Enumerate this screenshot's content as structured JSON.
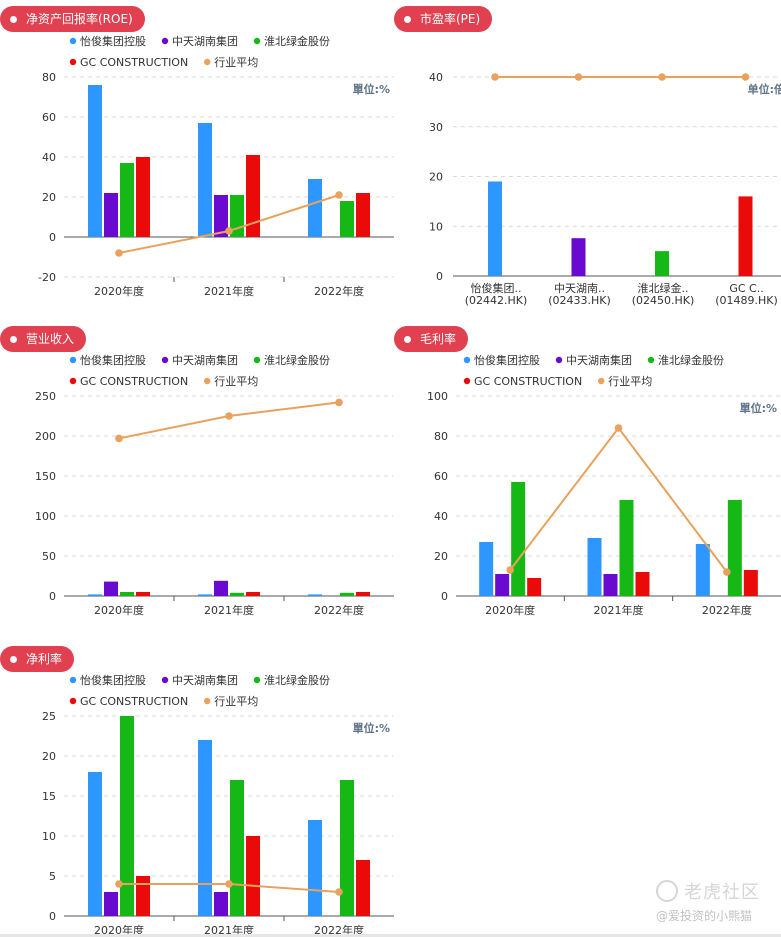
{
  "colors": {
    "series": [
      "#2e96ff",
      "#6a0ad1",
      "#16b815",
      "#ea0a0a"
    ],
    "avg": "#e8a25d",
    "pill": "#e0404f"
  },
  "watermark": {
    "brand": "老虎社区",
    "user": "@爱投资的小熊猫"
  },
  "chart_data": [
    {
      "id": "roe",
      "title": "净资产回报率(ROE)",
      "type": "bar",
      "unit": "單位:%",
      "legend": [
        "怡俊集团控股",
        "中天湖南集团",
        "淮北绿金股份",
        "GC CONSTRUCTION",
        "行业平均"
      ],
      "categories": [
        "2020年度",
        "2021年度",
        "2022年度"
      ],
      "ylim": [
        -20,
        80
      ],
      "yticks": [
        -20,
        0,
        20,
        40,
        60,
        80
      ],
      "series": [
        {
          "name": "怡俊集团控股",
          "values": [
            76,
            57,
            29
          ]
        },
        {
          "name": "中天湖南集团",
          "values": [
            22,
            21,
            null
          ]
        },
        {
          "name": "淮北绿金股份",
          "values": [
            37,
            21,
            18
          ]
        },
        {
          "name": "GC CONSTRUCTION",
          "values": [
            40,
            41,
            22
          ]
        }
      ],
      "line": {
        "name": "行业平均",
        "values": [
          -8,
          3,
          21
        ]
      }
    },
    {
      "id": "pe",
      "title": "市盈率(PE)",
      "type": "bar",
      "unit": "单位:倍",
      "categories": [
        "怡俊集团..(02442.HK)",
        "中天湖南..(02433.HK)",
        "淮北绿金..(02450.HK)",
        "GC C..(01489.HK)"
      ],
      "category_lines": [
        [
          "怡俊集团..",
          "(02442.HK)"
        ],
        [
          "中天湖南..",
          "(02433.HK)"
        ],
        [
          "淮北绿金..",
          "(02450.HK)"
        ],
        [
          "GC C..",
          "(01489.HK)"
        ]
      ],
      "ylim": [
        0,
        40
      ],
      "yticks": [
        0,
        10,
        20,
        30,
        40
      ],
      "values": [
        19,
        7.6,
        5,
        16
      ],
      "line": {
        "values": [
          40,
          40,
          40,
          40
        ]
      }
    },
    {
      "id": "revenue",
      "title": "营业收入",
      "type": "bar",
      "unit": "",
      "legend": [
        "怡俊集团控股",
        "中天湖南集团",
        "淮北绿金股份",
        "GC CONSTRUCTION",
        "行业平均"
      ],
      "categories": [
        "2020年度",
        "2021年度",
        "2022年度"
      ],
      "ylim": [
        0,
        250
      ],
      "yticks": [
        0,
        50,
        100,
        150,
        200,
        250
      ],
      "series": [
        {
          "name": "怡俊集团控股",
          "values": [
            2,
            2,
            2
          ]
        },
        {
          "name": "中天湖南集团",
          "values": [
            18,
            19,
            null
          ]
        },
        {
          "name": "淮北绿金股份",
          "values": [
            5,
            4,
            4
          ]
        },
        {
          "name": "GC CONSTRUCTION",
          "values": [
            5,
            5,
            5
          ]
        }
      ],
      "line": {
        "name": "行业平均",
        "values": [
          197,
          225,
          242
        ]
      }
    },
    {
      "id": "gross",
      "title": "毛利率",
      "type": "bar",
      "unit": "單位:%",
      "legend": [
        "怡俊集团控股",
        "中天湖南集团",
        "淮北绿金股份",
        "GC CONSTRUCTION",
        "行业平均"
      ],
      "categories": [
        "2020年度",
        "2021年度",
        "2022年度"
      ],
      "ylim": [
        0,
        100
      ],
      "yticks": [
        0,
        20,
        40,
        60,
        80,
        100
      ],
      "series": [
        {
          "name": "怡俊集团控股",
          "values": [
            27,
            29,
            26
          ]
        },
        {
          "name": "中天湖南集团",
          "values": [
            11,
            11,
            null
          ]
        },
        {
          "name": "淮北绿金股份",
          "values": [
            57,
            48,
            48
          ]
        },
        {
          "name": "GC CONSTRUCTION",
          "values": [
            9,
            12,
            13
          ]
        }
      ],
      "line": {
        "name": "行业平均",
        "values": [
          13,
          84,
          12
        ]
      }
    },
    {
      "id": "net",
      "title": "净利率",
      "type": "bar",
      "unit": "單位:%",
      "legend": [
        "怡俊集团控股",
        "中天湖南集团",
        "淮北绿金股份",
        "GC CONSTRUCTION",
        "行业平均"
      ],
      "categories": [
        "2020年度",
        "2021年度",
        "2022年度"
      ],
      "ylim": [
        0,
        25
      ],
      "yticks": [
        0,
        5,
        10,
        15,
        20,
        25
      ],
      "series": [
        {
          "name": "怡俊集团控股",
          "values": [
            18,
            22,
            12
          ]
        },
        {
          "name": "中天湖南集团",
          "values": [
            3,
            3,
            null
          ]
        },
        {
          "name": "淮北绿金股份",
          "values": [
            25,
            17,
            17
          ]
        },
        {
          "name": "GC CONSTRUCTION",
          "values": [
            5,
            10,
            7
          ]
        }
      ],
      "line": {
        "name": "行业平均",
        "values": [
          4,
          4,
          3
        ]
      }
    }
  ]
}
